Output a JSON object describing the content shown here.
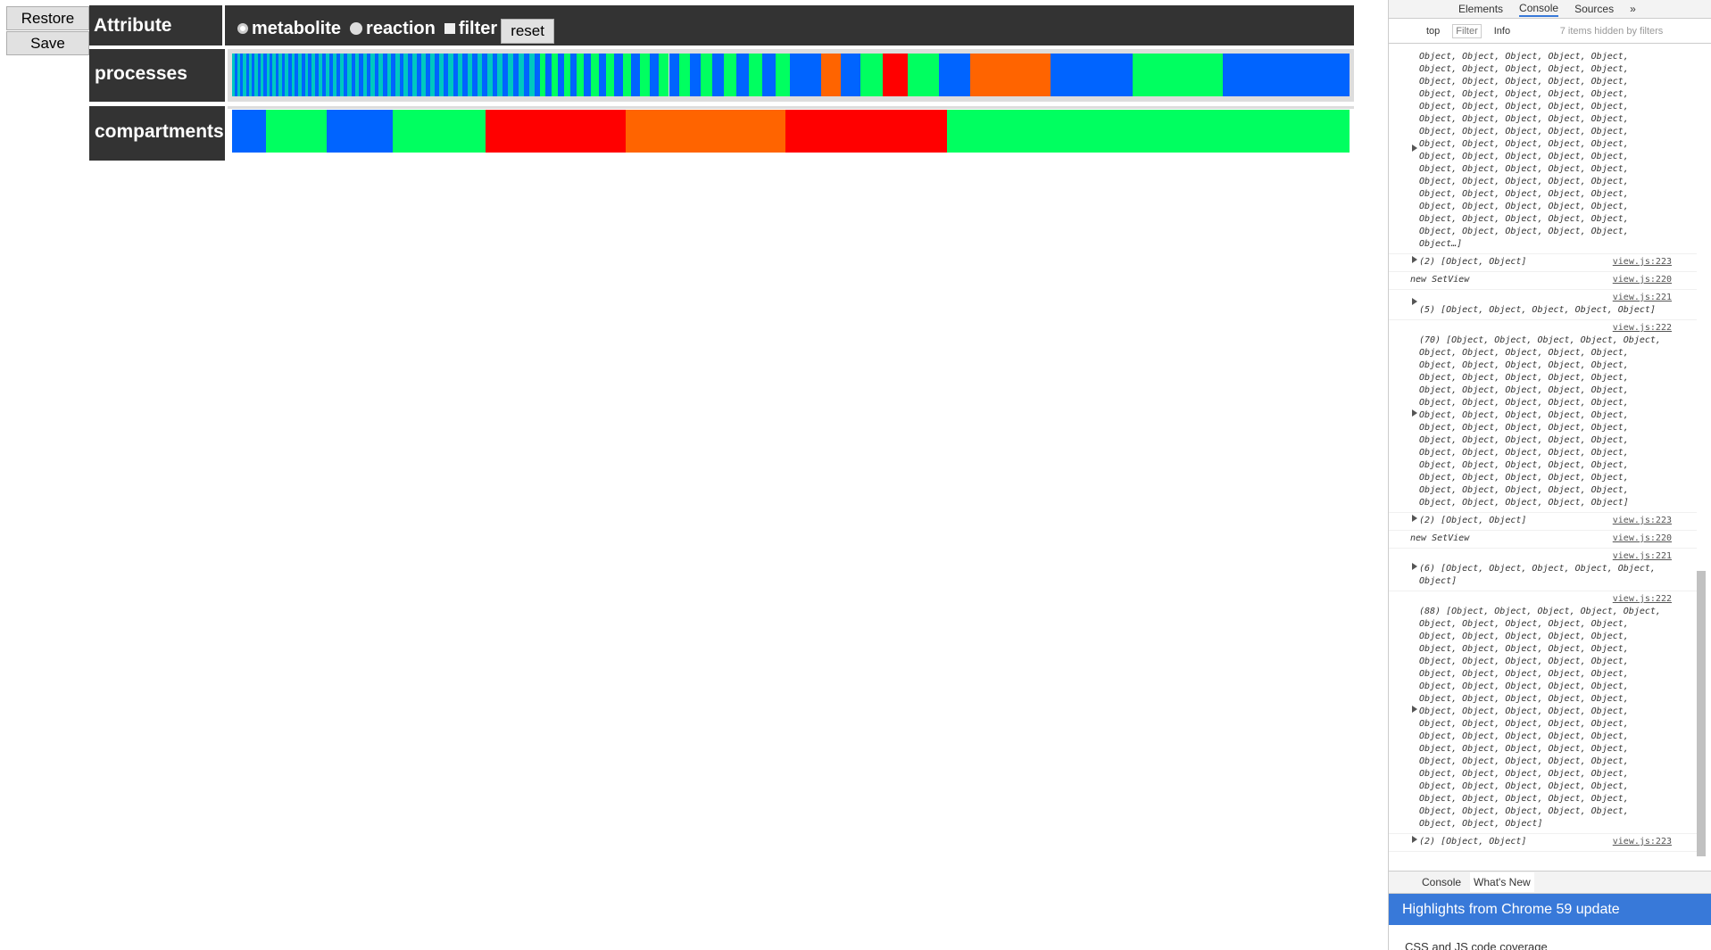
{
  "app": {
    "buttons": [
      "Restore",
      "Save"
    ],
    "header": {
      "label": "Attribute",
      "options": [
        "metabolite",
        "reaction",
        "filter"
      ],
      "reset": "reset"
    },
    "rows": [
      {
        "label": "processes"
      },
      {
        "label": "compartments"
      }
    ]
  },
  "devtools": {
    "tabs": [
      "Elements",
      "Console",
      "Sources",
      "»"
    ],
    "context": "top",
    "filter": "Filter",
    "level": "Info",
    "hidden": "7 items hidden by filters",
    "messages": [
      {
        "text": "Object, Object, Object, Object, Object, Object, Object, Object, Object, Object, Object, Object, Object, Object, Object, Object, Object, Object, Object, Object, Object, Object, Object, Object, Object, Object, Object, Object, Object, Object, Object, Object, Object, Object, Object, Object, Object, Object, Object, Object, Object, Object, Object, Object, Object, Object, Object, Object, Object, Object, Object, Object, Object, Object, Object, Object, Object, Object, Object, Object, Object, Object, Object, Object, Object, Object, Object, Object, Object, Object, Object, Object, Object, Object, Object, Object…]",
        "expand": true
      },
      {
        "text": "(2) [Object, Object]",
        "source": "view.js:223",
        "expand": true
      },
      {
        "text": "new SetView",
        "source": "view.js:220"
      },
      {
        "source": "view.js:221",
        "text": "(5) [Object, Object, Object, Object, Object]",
        "expand": true
      },
      {
        "source": "view.js:222",
        "text": "(70) [Object, Object, Object, Object, Object, Object, Object, Object, Object, Object, Object, Object, Object, Object, Object, Object, Object, Object, Object, Object, Object, Object, Object, Object, Object, Object, Object, Object, Object, Object, Object, Object, Object, Object, Object, Object, Object, Object, Object, Object, Object, Object, Object, Object, Object, Object, Object, Object, Object, Object, Object, Object, Object, Object, Object, Object, Object, Object, Object, Object, Object, Object, Object, Object, Object, Object, Object, Object, Object, Object]",
        "expand": true
      },
      {
        "text": "(2) [Object, Object]",
        "source": "view.js:223",
        "expand": true
      },
      {
        "text": "new SetView",
        "source": "view.js:220"
      },
      {
        "source": "view.js:221",
        "text": "(6) [Object, Object, Object, Object, Object, Object]",
        "expand": true
      },
      {
        "source": "view.js:222",
        "text": "(88) [Object, Object, Object, Object, Object, Object, Object, Object, Object, Object, Object, Object, Object, Object, Object, Object, Object, Object, Object, Object, Object, Object, Object, Object, Object, Object, Object, Object, Object, Object, Object, Object, Object, Object, Object, Object, Object, Object, Object, Object, Object, Object, Object, Object, Object, Object, Object, Object, Object, Object, Object, Object, Object, Object, Object, Object, Object, Object, Object, Object, Object, Object, Object, Object, Object, Object, Object, Object, Object, Object, Object, Object, Object, Object, Object, Object, Object, Object, Object, Object, Object, Object, Object, Object, Object, Object, Object, Object]",
        "expand": true
      },
      {
        "text": "(2) [Object, Object]",
        "source": "view.js:223",
        "expand": true
      }
    ],
    "drawer": {
      "tabs": [
        "Console",
        "What's New"
      ],
      "banner": "Highlights from Chrome 59 update",
      "item": "CSS and JS code coverage"
    }
  }
}
